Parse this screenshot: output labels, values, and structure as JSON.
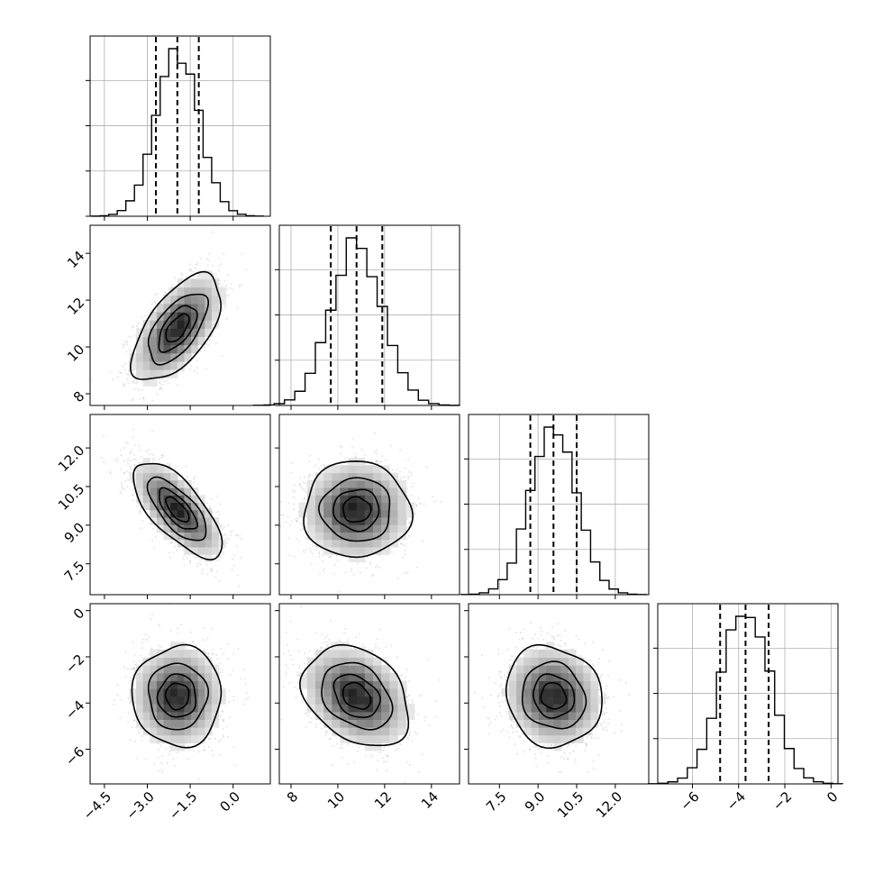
{
  "chart_data": {
    "type": "corner",
    "params": [
      {
        "range": [
          -5.0,
          1.3
        ],
        "median": -1.95,
        "q16": -2.7,
        "q84": -1.2,
        "sigma": 0.75,
        "ticks": [
          -4.5,
          -3.0,
          -1.5,
          0.0
        ],
        "tick_labels": [
          "−4.5",
          "−3.0",
          "−1.5",
          "0.0"
        ]
      },
      {
        "range": [
          7.5,
          15.2
        ],
        "median": 10.8,
        "q16": 9.7,
        "q84": 11.9,
        "sigma": 1.1,
        "ticks": [
          8,
          10,
          12,
          14
        ],
        "tick_labels": [
          "8",
          "10",
          "12",
          "14"
        ]
      },
      {
        "range": [
          6.3,
          13.3
        ],
        "median": 9.6,
        "q16": 8.7,
        "q84": 10.5,
        "sigma": 0.9,
        "ticks": [
          7.5,
          9.0,
          10.5,
          12.0
        ],
        "tick_labels": [
          "7.5",
          "9.0",
          "10.5",
          "12.0"
        ]
      },
      {
        "range": [
          -7.5,
          0.3
        ],
        "median": -3.7,
        "q16": -4.8,
        "q84": -2.7,
        "sigma": 1.05,
        "ticks": [
          -6,
          -4,
          -2,
          0
        ],
        "tick_labels": [
          "−6",
          "−4",
          "−2",
          "0"
        ]
      }
    ],
    "correlations": [
      [
        1.0,
        0.6,
        -0.7,
        0.0
      ],
      [
        0.6,
        1.0,
        0.0,
        -0.3
      ],
      [
        -0.7,
        0.0,
        1.0,
        -0.1
      ],
      [
        0.0,
        -0.3,
        -0.1,
        1.0
      ]
    ],
    "contour_levels_sigma": [
      0.5,
      1.0,
      1.5,
      2.0
    ],
    "histogram_bins": 20,
    "grid": true,
    "xlabel": "",
    "ylabel": ""
  }
}
